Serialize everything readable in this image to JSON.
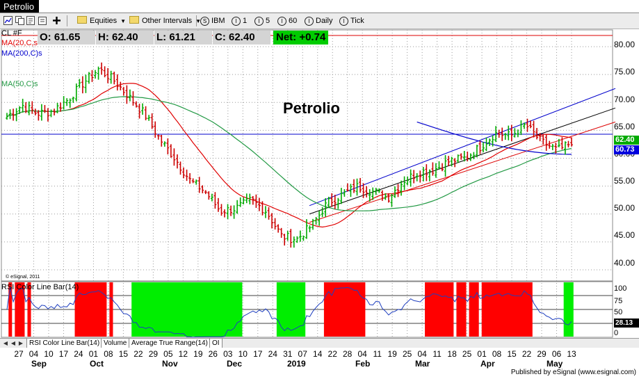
{
  "window": {
    "title": "Petrolio"
  },
  "toolbar": {
    "equities": "Equities",
    "other_intervals": "Other Intervals",
    "symbol": "IBM",
    "interval_1": "1",
    "interval_5": "5",
    "interval_60": "60",
    "daily": "Daily",
    "tick": "Tick"
  },
  "quote": {
    "open": "O: 61.65",
    "high": "H: 62.40",
    "low": "L: 61.21",
    "close": "C: 62.40",
    "net": "Net: +0.74"
  },
  "legend": {
    "symbol": "CL #F",
    "ma20": "MA(20,C,s",
    "ma200": "MA(200,C)s",
    "ma50": "MA(50,C)s"
  },
  "chart_title": "Petrolio",
  "watermark": "© eSignal, 2011",
  "price_boxes": {
    "last": "62.40",
    "ma200": "60.73"
  },
  "y_axis_labels": [
    "80.00",
    "75.00",
    "70.00",
    "65.00",
    "60.00",
    "55.00",
    "50.00",
    "45.00",
    "40.00"
  ],
  "rsi_panel": {
    "title": "RSI Color Line Bar(14)",
    "axis_labels": [
      "100",
      "75",
      "50",
      "25",
      "0"
    ],
    "last_value": "28.13"
  },
  "tabs": [
    "RSI Color Line Bar(14)",
    "Volume",
    "Average True Range(14)",
    "OI"
  ],
  "x_axis": {
    "days": [
      "27",
      "04",
      "10",
      "17",
      "24",
      "01",
      "08",
      "15",
      "22",
      "29",
      "05",
      "12",
      "19",
      "26",
      "03",
      "10",
      "17",
      "24",
      "31",
      "07",
      "14",
      "22",
      "28",
      "04",
      "11",
      "19",
      "25",
      "04",
      "11",
      "18",
      "25",
      "01",
      "08",
      "15",
      "22",
      "29",
      "06",
      "13"
    ],
    "months": [
      "Sep",
      "Oct",
      "Nov",
      "Dec",
      "2019",
      "Feb",
      "Mar",
      "Apr",
      "May"
    ]
  },
  "footer": "Published by eSignal (www.esignal.com)",
  "colors": {
    "up_bar": "#00aa00",
    "down_bar": "#cc0000",
    "ma20": "#e00000",
    "ma50": "#229944",
    "ma200": "#0000cc",
    "net_bg": "#00cc00",
    "price_box_last": "#00aa00",
    "price_box_ma200": "#0000dd",
    "rsi_high": "#ff0000",
    "rsi_low": "#00ee00"
  },
  "chart_data": {
    "type": "ohlc",
    "symbol": "CL #F",
    "title": "Petrolio",
    "ylim": [
      38,
      83
    ],
    "grid": true,
    "last_close": 62.4,
    "ma200_last": 60.73,
    "horizontal_lines": [
      82,
      64.3
    ],
    "closes_weekly": [
      67.5,
      69.5,
      68.0,
      68.5,
      70.5,
      73.5,
      76.0,
      74.0,
      71.0,
      68.0,
      63.5,
      60.0,
      56.0,
      54.0,
      50.5,
      51.0,
      52.5,
      50.5,
      46.0,
      45.5,
      48.0,
      52.0,
      53.5,
      55.0,
      54.0,
      53.0,
      56.0,
      57.5,
      58.0,
      59.5,
      60.0,
      62.0,
      64.5,
      64.0,
      66.0,
      63.0,
      61.5,
      62.4
    ],
    "rsi": {
      "ylim": [
        0,
        100
      ],
      "levels": [
        75,
        50,
        25
      ],
      "last": 28.13
    }
  }
}
